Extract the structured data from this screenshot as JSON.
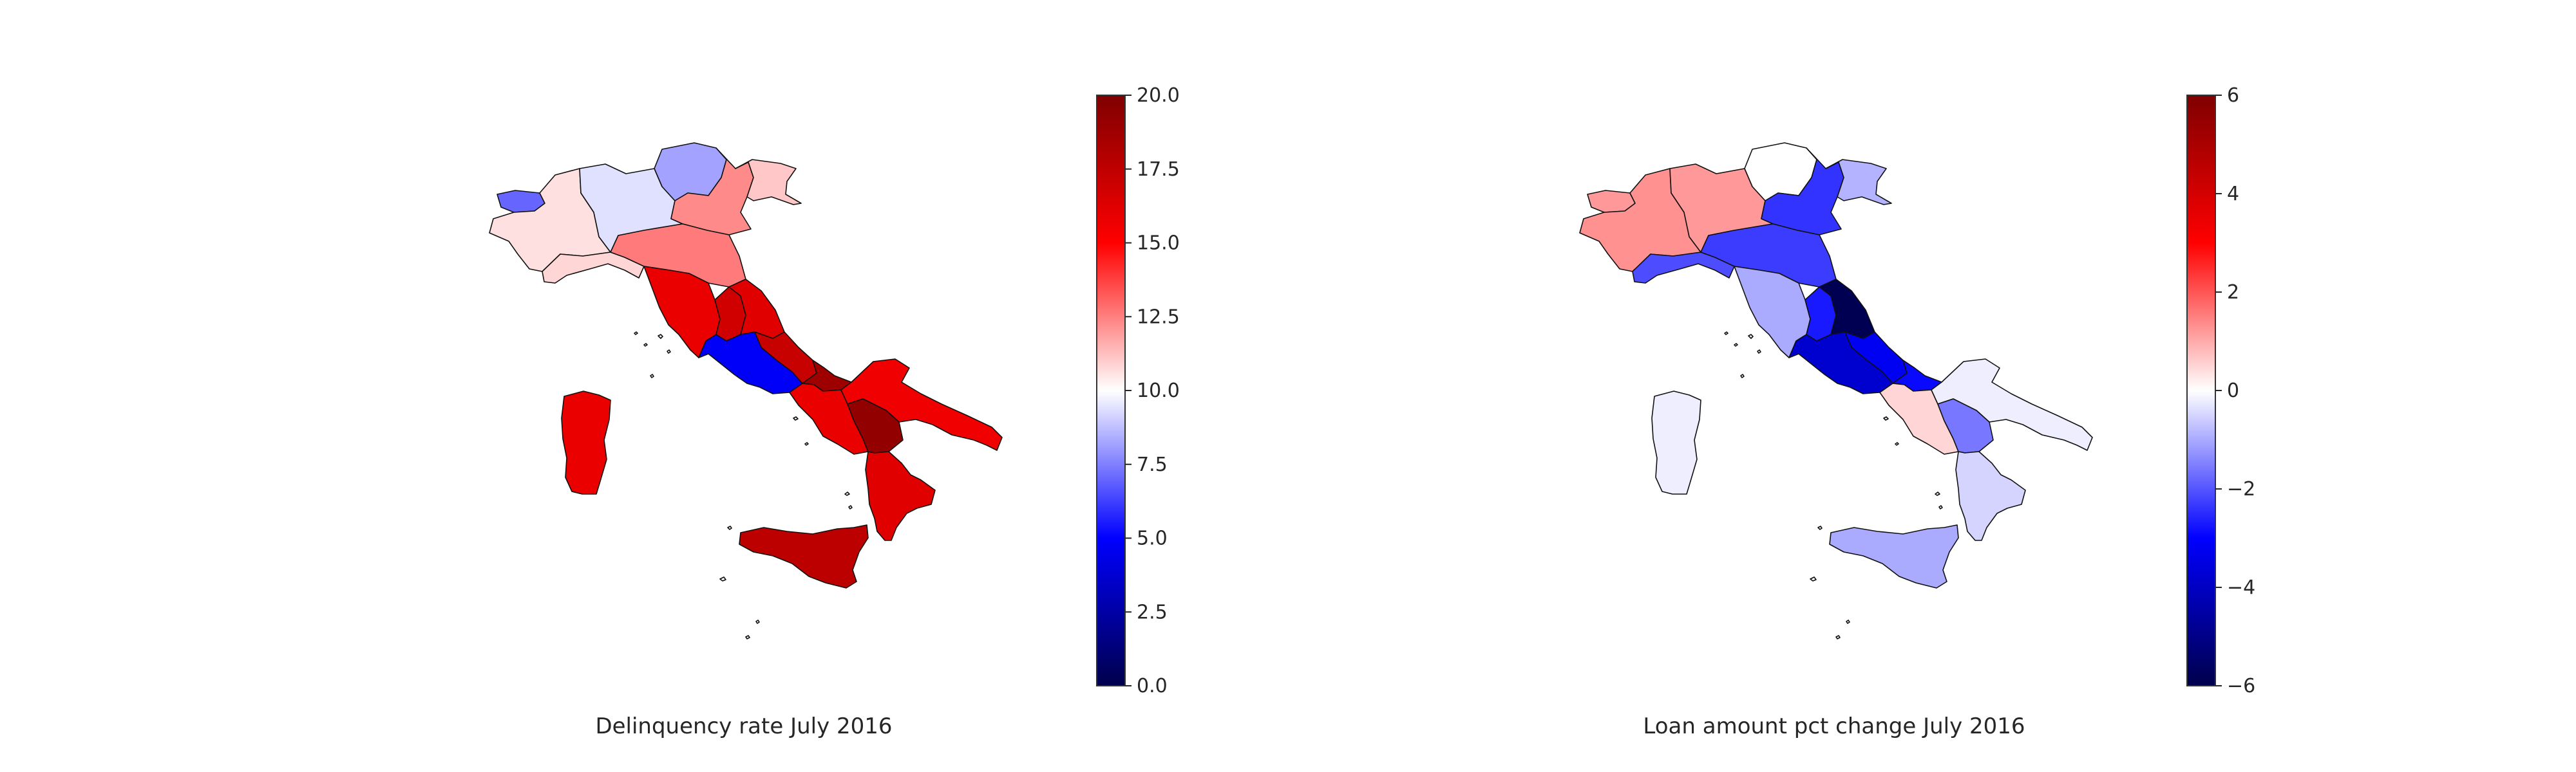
{
  "maps": [
    {
      "title": "Delinquency rate July 2016",
      "colorbar": {
        "min": 0,
        "max": 20,
        "colors": [
          "#00004c",
          "#0000ff",
          "#ffffff",
          "#ff0000",
          "#7f0000"
        ],
        "ticks": [
          "0.0",
          "2.5",
          "5.0",
          "7.5",
          "10.0",
          "12.5",
          "15.0",
          "17.5",
          "20.0"
        ]
      },
      "regions": [
        {
          "name": "Valle d'Aosta",
          "value": 7
        },
        {
          "name": "Piemonte",
          "value": 10.6
        },
        {
          "name": "Lombardia",
          "value": 9.4
        },
        {
          "name": "Trentino-Alto Adige",
          "value": 8.2
        },
        {
          "name": "Veneto",
          "value": 12.3
        },
        {
          "name": "Friuli-Venezia Giulia",
          "value": 11.1
        },
        {
          "name": "Liguria",
          "value": 10.8
        },
        {
          "name": "Emilia-Romagna",
          "value": 12.6
        },
        {
          "name": "Toscana",
          "value": 15.8
        },
        {
          "name": "Umbria",
          "value": 16.8
        },
        {
          "name": "Marche",
          "value": 16.2
        },
        {
          "name": "Lazio",
          "value": 4.8
        },
        {
          "name": "Abruzzo",
          "value": 17.2
        },
        {
          "name": "Molise",
          "value": 18.8
        },
        {
          "name": "Campania",
          "value": 15.8
        },
        {
          "name": "Puglia",
          "value": 15.6
        },
        {
          "name": "Basilicata",
          "value": 19.2
        },
        {
          "name": "Calabria",
          "value": 16.2
        },
        {
          "name": "Sicilia",
          "value": 17.6
        },
        {
          "name": "Sardegna",
          "value": 15.8
        }
      ]
    },
    {
      "title": "Loan amount pct change July 2016",
      "colorbar": {
        "min": -6,
        "max": 6,
        "colors": [
          "#00004c",
          "#0000ff",
          "#ffffff",
          "#ff0000",
          "#7f0000"
        ],
        "ticks": [
          "−6",
          "−4",
          "−2",
          "0",
          "2",
          "4",
          "6"
        ]
      },
      "regions": [
        {
          "name": "Valle d'Aosta",
          "value": 1.2
        },
        {
          "name": "Piemonte",
          "value": 1.3
        },
        {
          "name": "Lombardia",
          "value": 1.2
        },
        {
          "name": "Trentino-Alto Adige",
          "value": 0.0
        },
        {
          "name": "Veneto",
          "value": -2.4
        },
        {
          "name": "Friuli-Venezia Giulia",
          "value": -0.9
        },
        {
          "name": "Liguria",
          "value": -2.1
        },
        {
          "name": "Emilia-Romagna",
          "value": -2.3
        },
        {
          "name": "Toscana",
          "value": -1.0
        },
        {
          "name": "Umbria",
          "value": -2.7
        },
        {
          "name": "Marche",
          "value": -5.9
        },
        {
          "name": "Lazio",
          "value": -3.8
        },
        {
          "name": "Abruzzo",
          "value": -3.2
        },
        {
          "name": "Molise",
          "value": -2.9
        },
        {
          "name": "Campania",
          "value": 0.5
        },
        {
          "name": "Puglia",
          "value": -0.2
        },
        {
          "name": "Basilicata",
          "value": -1.6
        },
        {
          "name": "Calabria",
          "value": -0.5
        },
        {
          "name": "Sicilia",
          "value": -1.0
        },
        {
          "name": "Sardegna",
          "value": -0.2
        }
      ]
    }
  ]
}
